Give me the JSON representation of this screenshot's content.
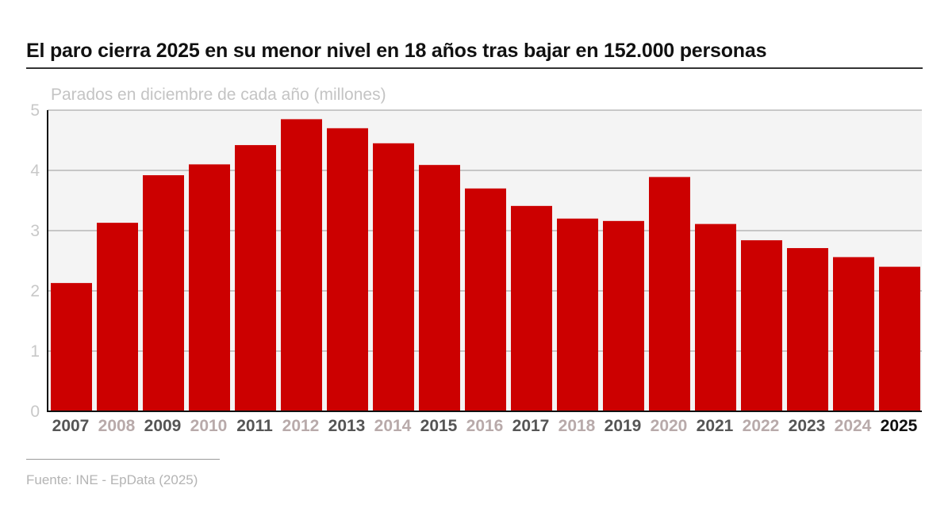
{
  "header": {
    "title": "El paro cierra 2025 en su menor nivel en 18 años tras bajar en 152.000 personas"
  },
  "footer": {
    "source": "Fuente: INE - EpData (2025)"
  },
  "colors": {
    "bar": "#cc0000",
    "plot_background": "#f4f4f4",
    "gridline": "#999999",
    "axis": "#111111",
    "tick_label_dark": "#555555",
    "tick_label_light": "#b8aaaa",
    "tick_label_highlight": "#111111"
  },
  "chart_data": {
    "type": "bar",
    "title": "El paro cierra 2025 en su menor nivel en 18 años tras bajar en 152.000 personas",
    "subtitle": "Parados en diciembre de cada año (millones)",
    "xlabel": "",
    "ylabel": "",
    "categories": [
      "2007",
      "2008",
      "2009",
      "2010",
      "2011",
      "2012",
      "2013",
      "2014",
      "2015",
      "2016",
      "2017",
      "2018",
      "2019",
      "2020",
      "2021",
      "2022",
      "2023",
      "2024",
      "2025"
    ],
    "values": [
      2.13,
      3.13,
      3.92,
      4.1,
      4.42,
      4.85,
      4.7,
      4.45,
      4.09,
      3.7,
      3.41,
      3.2,
      3.16,
      3.89,
      3.11,
      2.84,
      2.71,
      2.56,
      2.4
    ],
    "yticks": [
      0,
      1,
      2,
      3,
      4,
      5
    ],
    "ylim": [
      0,
      5
    ],
    "grid": true,
    "legend": "none",
    "highlight_category": "2025"
  }
}
